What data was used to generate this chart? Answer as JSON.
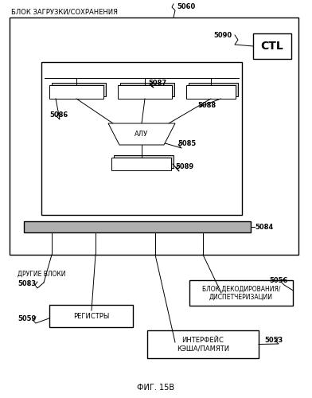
{
  "title": "ФИГ. 15В",
  "background": "#ffffff",
  "outer_box_label": "БЛОК ЗАГРУЗКИ/СОХРАНЕНИЯ",
  "label_5060": "5060",
  "label_5090": "5090",
  "label_CTL": "CTL",
  "label_5084": "5084",
  "label_5085": "5085",
  "label_5086": "5086",
  "label_5087": "5087",
  "label_5088": "5088",
  "label_5089": "5089",
  "label_5083": "5083",
  "label_5059": "5059",
  "label_5056": "5056",
  "label_5053": "5053",
  "label_other_blocks": "ДРУГИЕ БЛОКИ",
  "label_registers": "РЕГИСТРЫ",
  "label_decode": "БЛОК ДЕКОДИРОВАНИЯ/\nДИСПЕТЧЕРИЗАЦИИ",
  "label_cache": "ИНТЕРФЕЙС\nКЭША/ПАМЯТИ",
  "label_alu": "АЛУ"
}
